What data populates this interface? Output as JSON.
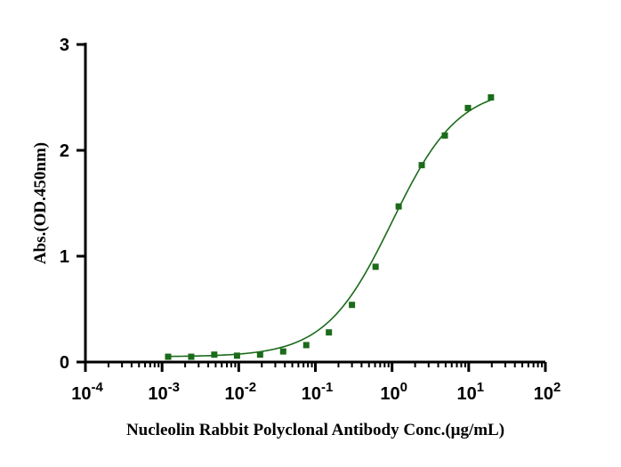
{
  "chart_data": {
    "type": "scatter",
    "title": "",
    "xlabel": "Nucleolin Rabbit Polyclonal Antibody   Conc.(μg/mL)",
    "ylabel": "Abs.(OD.450nm)",
    "x_scale": "log",
    "xlim": [
      0.0001,
      100
    ],
    "ylim": [
      0,
      3
    ],
    "grid": false,
    "legend": "none",
    "x_ticks": [
      {
        "base": "10",
        "exp": "-4"
      },
      {
        "base": "10",
        "exp": "-3"
      },
      {
        "base": "10",
        "exp": "-2"
      },
      {
        "base": "10",
        "exp": "-1"
      },
      {
        "base": "10",
        "exp": "0"
      },
      {
        "base": "10",
        "exp": "1"
      },
      {
        "base": "10",
        "exp": "2"
      }
    ],
    "y_ticks": [
      "0",
      "1",
      "2",
      "3"
    ],
    "series": [
      {
        "color": "#1a6b1a",
        "marker": "square",
        "fit_line": "4PL sigmoid",
        "x": [
          0.0012,
          0.0024,
          0.0048,
          0.0095,
          0.019,
          0.038,
          0.076,
          0.15,
          0.3,
          0.61,
          1.22,
          2.44,
          4.88,
          9.77,
          19.5
        ],
        "y": [
          0.05,
          0.05,
          0.07,
          0.06,
          0.07,
          0.1,
          0.16,
          0.28,
          0.54,
          0.9,
          1.47,
          1.86,
          2.14,
          2.4,
          2.5
        ]
      }
    ],
    "fit_params": {
      "bottom": 0.05,
      "top": 2.6,
      "ec50": 1.0,
      "hill": 1.0
    },
    "line_color": "#1a6b1a"
  }
}
